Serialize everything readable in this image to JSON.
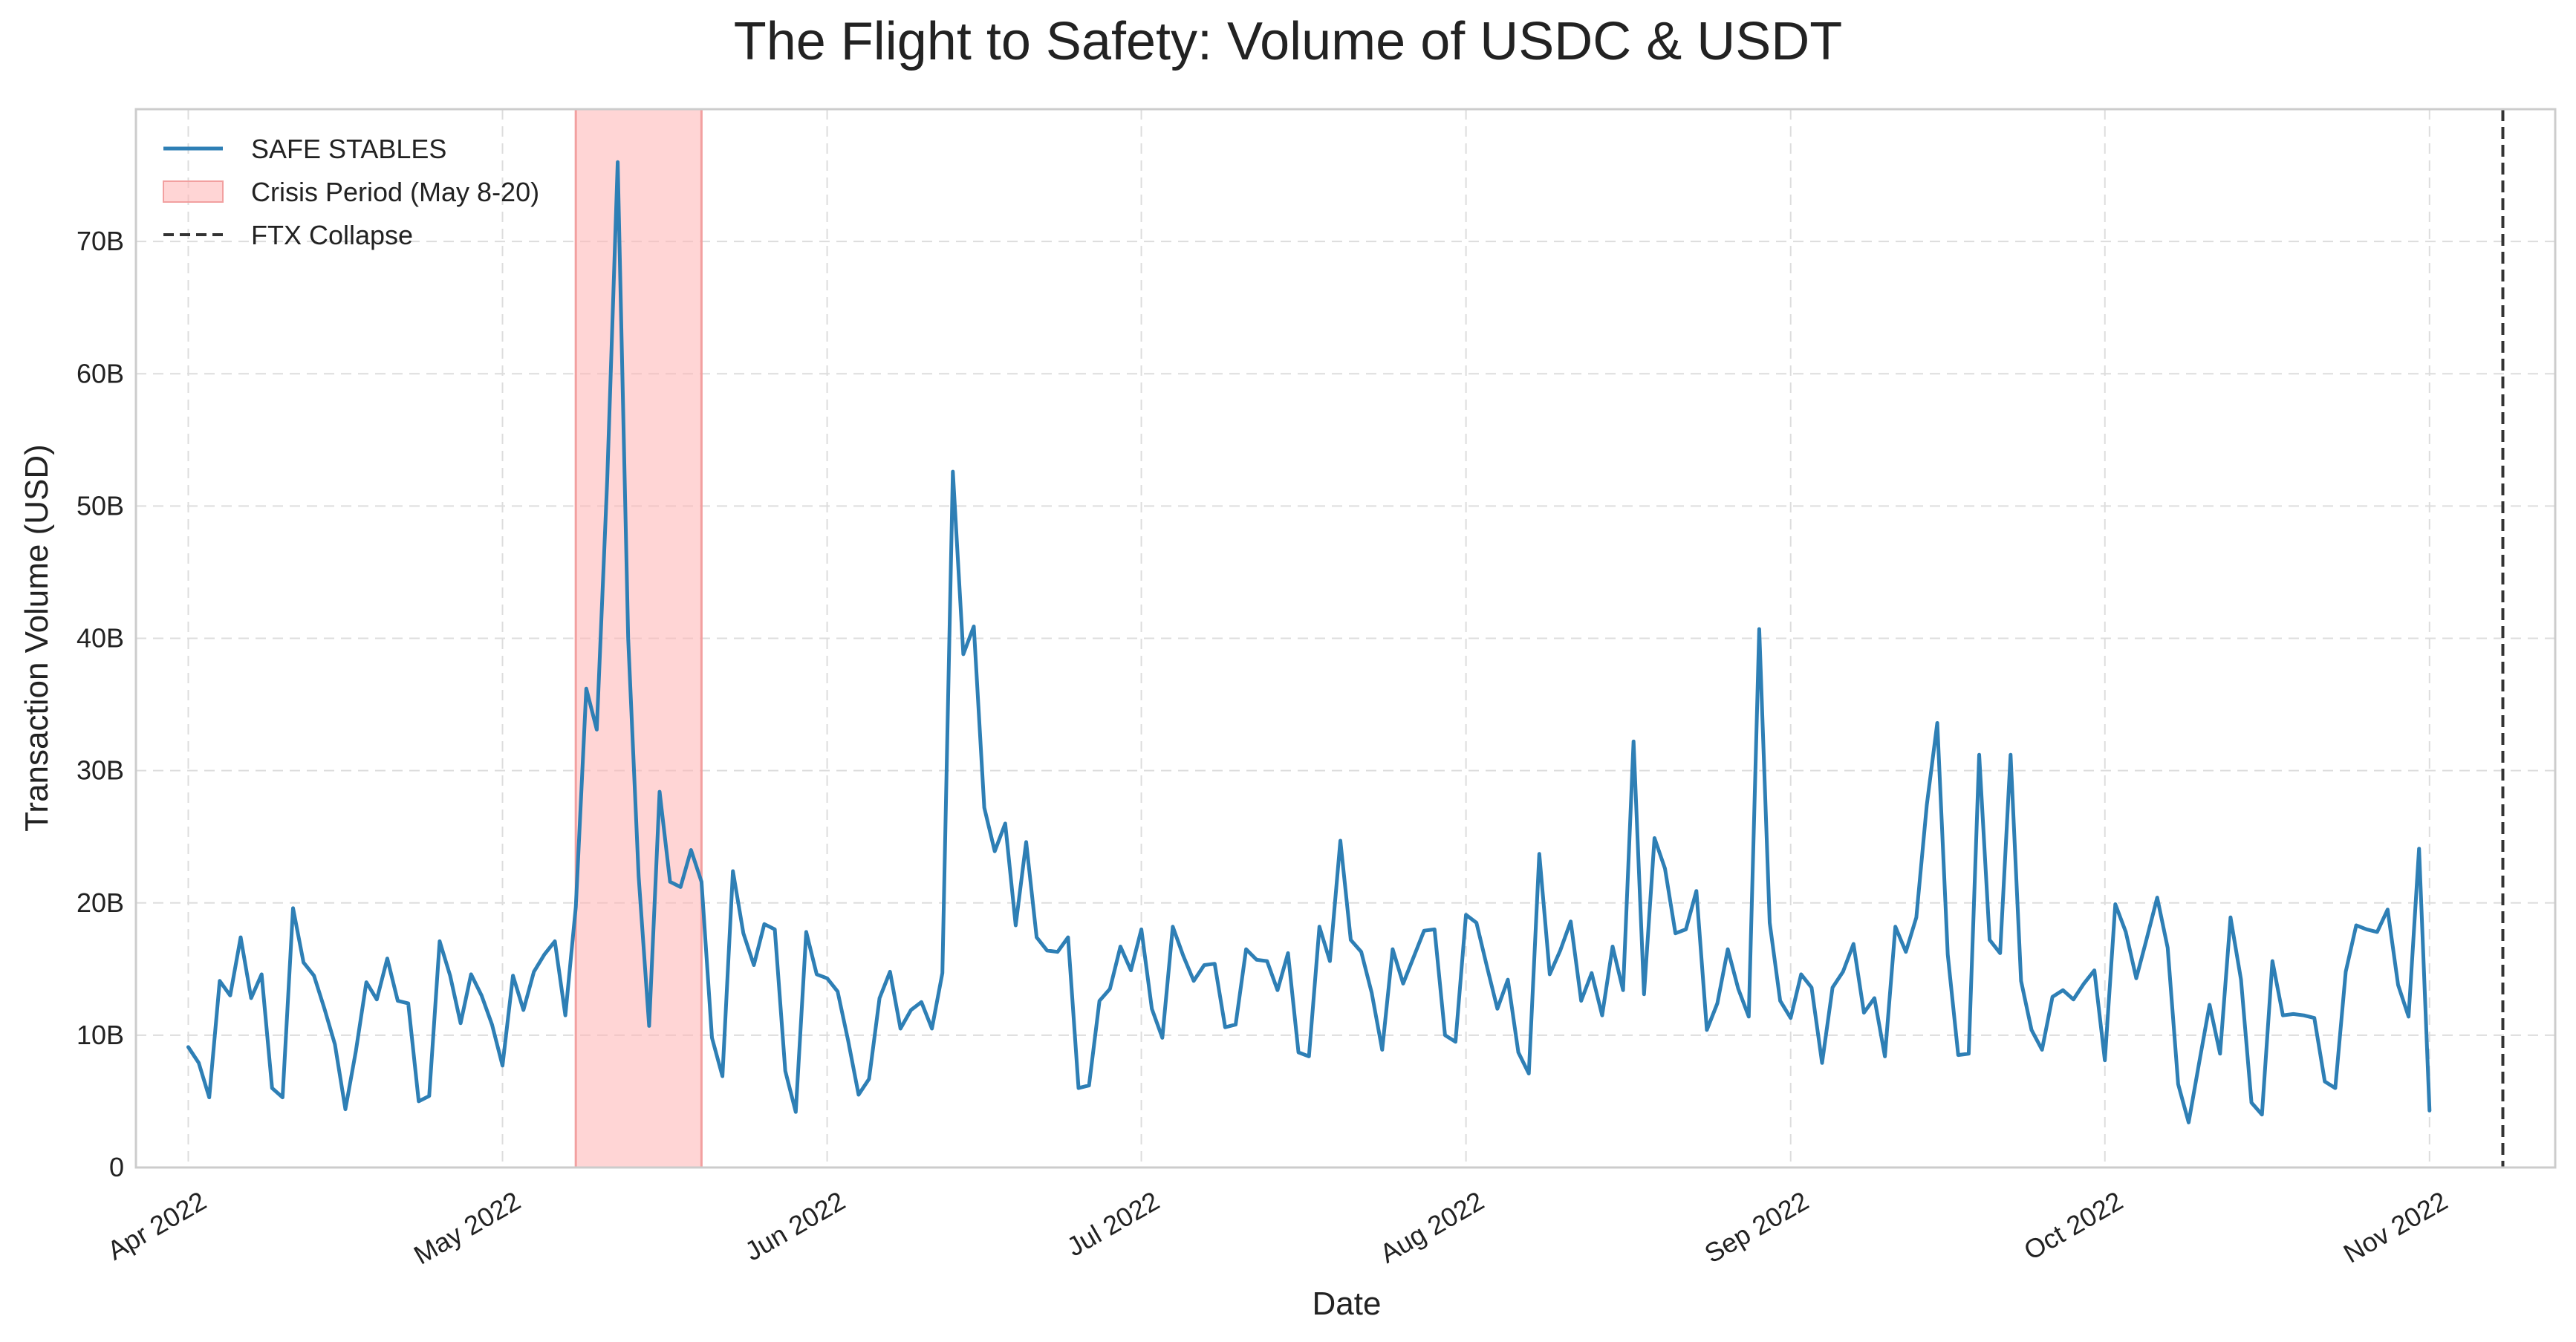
{
  "chart_data": {
    "type": "line",
    "title": "The Flight to Safety: Volume of USDC & USDT",
    "xlabel": "Date",
    "ylabel": "Transaction Volume (USD)",
    "x_range": [
      "2022-03-27",
      "2022-11-13"
    ],
    "ylim": [
      0,
      80
    ],
    "y_units": "billions USD",
    "grid": true,
    "legend_position": "top-left",
    "y_ticks": [
      {
        "value": 0,
        "label": "0"
      },
      {
        "value": 10,
        "label": "10B"
      },
      {
        "value": 20,
        "label": "20B"
      },
      {
        "value": 30,
        "label": "30B"
      },
      {
        "value": 40,
        "label": "40B"
      },
      {
        "value": 50,
        "label": "50B"
      },
      {
        "value": 60,
        "label": "60B"
      },
      {
        "value": 70,
        "label": "70B"
      }
    ],
    "x_ticks": [
      {
        "date": "2022-04-01",
        "label": "Apr 2022"
      },
      {
        "date": "2022-05-01",
        "label": "May 2022"
      },
      {
        "date": "2022-06-01",
        "label": "Jun 2022"
      },
      {
        "date": "2022-07-01",
        "label": "Jul 2022"
      },
      {
        "date": "2022-08-01",
        "label": "Aug 2022"
      },
      {
        "date": "2022-09-01",
        "label": "Sep 2022"
      },
      {
        "date": "2022-10-01",
        "label": "Oct 2022"
      },
      {
        "date": "2022-11-01",
        "label": "Nov 2022"
      }
    ],
    "legend": [
      {
        "label": "SAFE STABLES",
        "kind": "line"
      },
      {
        "label": "Crisis Period (May 8-20)",
        "kind": "patch"
      },
      {
        "label": "FTX Collapse",
        "kind": "dashed"
      }
    ],
    "shaded_region": {
      "label": "Crisis Period (May 8-20)",
      "start": "2022-05-08",
      "end": "2022-05-20",
      "color": "#ffb3b3"
    },
    "vertical_line": {
      "label": "FTX Collapse",
      "date": "2022-11-08",
      "color": "#333333"
    },
    "colors": {
      "series": "#2e7fb5",
      "crisis_fill": "#ffb3b3",
      "crisis_edge": "#f2a0a0",
      "ftx_line": "#333333",
      "grid": "#dddddd",
      "frame": "#cccccc"
    },
    "series": [
      {
        "name": "SAFE STABLES",
        "start_date": "2022-04-01",
        "values": [
          9.1,
          7.9,
          5.3,
          14.1,
          13.0,
          17.4,
          12.8,
          14.6,
          6.0,
          5.3,
          19.6,
          15.5,
          14.5,
          12.0,
          9.3,
          4.4,
          8.8,
          14.0,
          12.7,
          15.8,
          12.6,
          12.4,
          5.0,
          5.4,
          17.1,
          14.5,
          10.9,
          14.6,
          13.0,
          10.8,
          7.7,
          14.5,
          11.9,
          14.8,
          16.1,
          17.1,
          11.5,
          19.7,
          36.2,
          33.1,
          52.0,
          76.0,
          40.0,
          22.0,
          10.7,
          28.4,
          21.6,
          21.2,
          24.0,
          21.6,
          9.8,
          6.9,
          22.4,
          17.7,
          15.3,
          18.4,
          18.0,
          7.3,
          4.2,
          17.8,
          14.6,
          14.3,
          13.3,
          9.6,
          5.5,
          6.7,
          12.8,
          14.8,
          10.5,
          11.9,
          12.5,
          10.5,
          14.7,
          52.6,
          38.8,
          40.9,
          27.2,
          23.9,
          26.0,
          18.3,
          24.6,
          17.4,
          16.4,
          16.3,
          17.4,
          6.0,
          6.2,
          12.6,
          13.5,
          16.7,
          14.9,
          18.0,
          12.0,
          9.8,
          18.2,
          16.0,
          14.1,
          15.3,
          15.4,
          10.6,
          10.8,
          16.5,
          15.7,
          15.6,
          13.4,
          16.2,
          8.7,
          8.4,
          18.2,
          15.6,
          24.7,
          17.2,
          16.3,
          13.2,
          8.9,
          16.5,
          13.9,
          15.9,
          17.9,
          18.0,
          10.0,
          9.5,
          19.1,
          18.5,
          15.2,
          12.0,
          14.2,
          8.7,
          7.1,
          23.7,
          14.6,
          16.4,
          18.6,
          12.6,
          14.7,
          11.5,
          16.7,
          13.4,
          32.2,
          13.1,
          24.9,
          22.6,
          17.7,
          18.0,
          20.9,
          10.4,
          12.4,
          16.5,
          13.5,
          11.4,
          40.7,
          18.5,
          12.6,
          11.3,
          14.6,
          13.6,
          7.9,
          13.6,
          14.8,
          16.9,
          11.7,
          12.8,
          8.4,
          18.2,
          16.3,
          18.9,
          27.4,
          33.6,
          16.1,
          8.5,
          8.6,
          31.2,
          17.2,
          16.2,
          31.2,
          14.1,
          10.4,
          8.9,
          12.9,
          13.4,
          12.7,
          13.9,
          14.9,
          8.1,
          19.9,
          17.8,
          14.3,
          17.3,
          20.4,
          16.6,
          6.3,
          3.4,
          7.9,
          12.3,
          8.6,
          18.9,
          14.2,
          4.9,
          4.0,
          15.6,
          11.5,
          11.6,
          11.5,
          11.3,
          6.5,
          6.0,
          14.8,
          18.3,
          18.0,
          17.8,
          19.5,
          13.8,
          11.4,
          24.1,
          4.3
        ]
      }
    ]
  }
}
